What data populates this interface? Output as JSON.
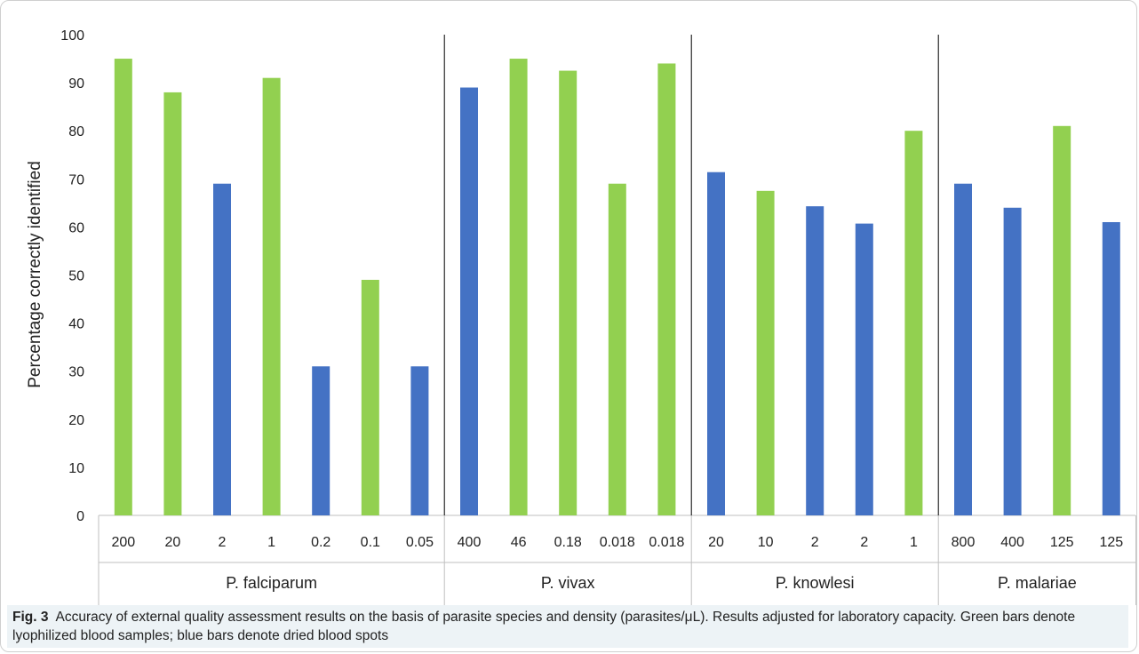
{
  "chart_data": {
    "type": "bar",
    "ylabel": "Percentage correctly identified",
    "xlabel": "",
    "ylim": [
      0,
      100
    ],
    "yticks": [
      0,
      10,
      20,
      30,
      40,
      50,
      60,
      70,
      80,
      90,
      100
    ],
    "grid": false,
    "colors": {
      "lyophilized": "#92d050",
      "dried": "#4472c4"
    },
    "groups": [
      {
        "name": "P. falciparum",
        "bars": [
          {
            "label": "200",
            "value": 95,
            "sample": "lyophilized"
          },
          {
            "label": "20",
            "value": 88,
            "sample": "lyophilized"
          },
          {
            "label": "2",
            "value": 69,
            "sample": "dried"
          },
          {
            "label": "1",
            "value": 91,
            "sample": "lyophilized"
          },
          {
            "label": "0.2",
            "value": 31,
            "sample": "dried"
          },
          {
            "label": "0.1",
            "value": 49,
            "sample": "lyophilized"
          },
          {
            "label": "0.05",
            "value": 31,
            "sample": "dried"
          }
        ]
      },
      {
        "name": "P. vivax",
        "bars": [
          {
            "label": "400",
            "value": 89,
            "sample": "dried"
          },
          {
            "label": "46",
            "value": 95,
            "sample": "lyophilized"
          },
          {
            "label": "0.18",
            "value": 92.5,
            "sample": "lyophilized"
          },
          {
            "label": "0.018",
            "value": 69,
            "sample": "lyophilized"
          },
          {
            "label": "0.018",
            "value": 94,
            "sample": "lyophilized"
          }
        ]
      },
      {
        "name": "P. knowlesi",
        "bars": [
          {
            "label": "20",
            "value": 71.4,
            "sample": "dried"
          },
          {
            "label": "10",
            "value": 67.5,
            "sample": "lyophilized"
          },
          {
            "label": "2",
            "value": 64.3,
            "sample": "dried"
          },
          {
            "label": "2",
            "value": 60.7,
            "sample": "dried"
          },
          {
            "label": "1",
            "value": 80,
            "sample": "lyophilized"
          }
        ]
      },
      {
        "name": "P. malariae",
        "bars": [
          {
            "label": "800",
            "value": 69,
            "sample": "dried"
          },
          {
            "label": "400",
            "value": 64,
            "sample": "dried"
          },
          {
            "label": "125",
            "value": 81,
            "sample": "lyophilized"
          },
          {
            "label": "125",
            "value": 61,
            "sample": "dried"
          }
        ]
      }
    ]
  },
  "caption": {
    "label": "Fig. 3",
    "text": "Accuracy of external quality assessment results on the basis of parasite species and density (parasites/μL). Results adjusted for laboratory capacity. Green bars denote lyophilized blood samples; blue bars denote dried blood spots"
  }
}
